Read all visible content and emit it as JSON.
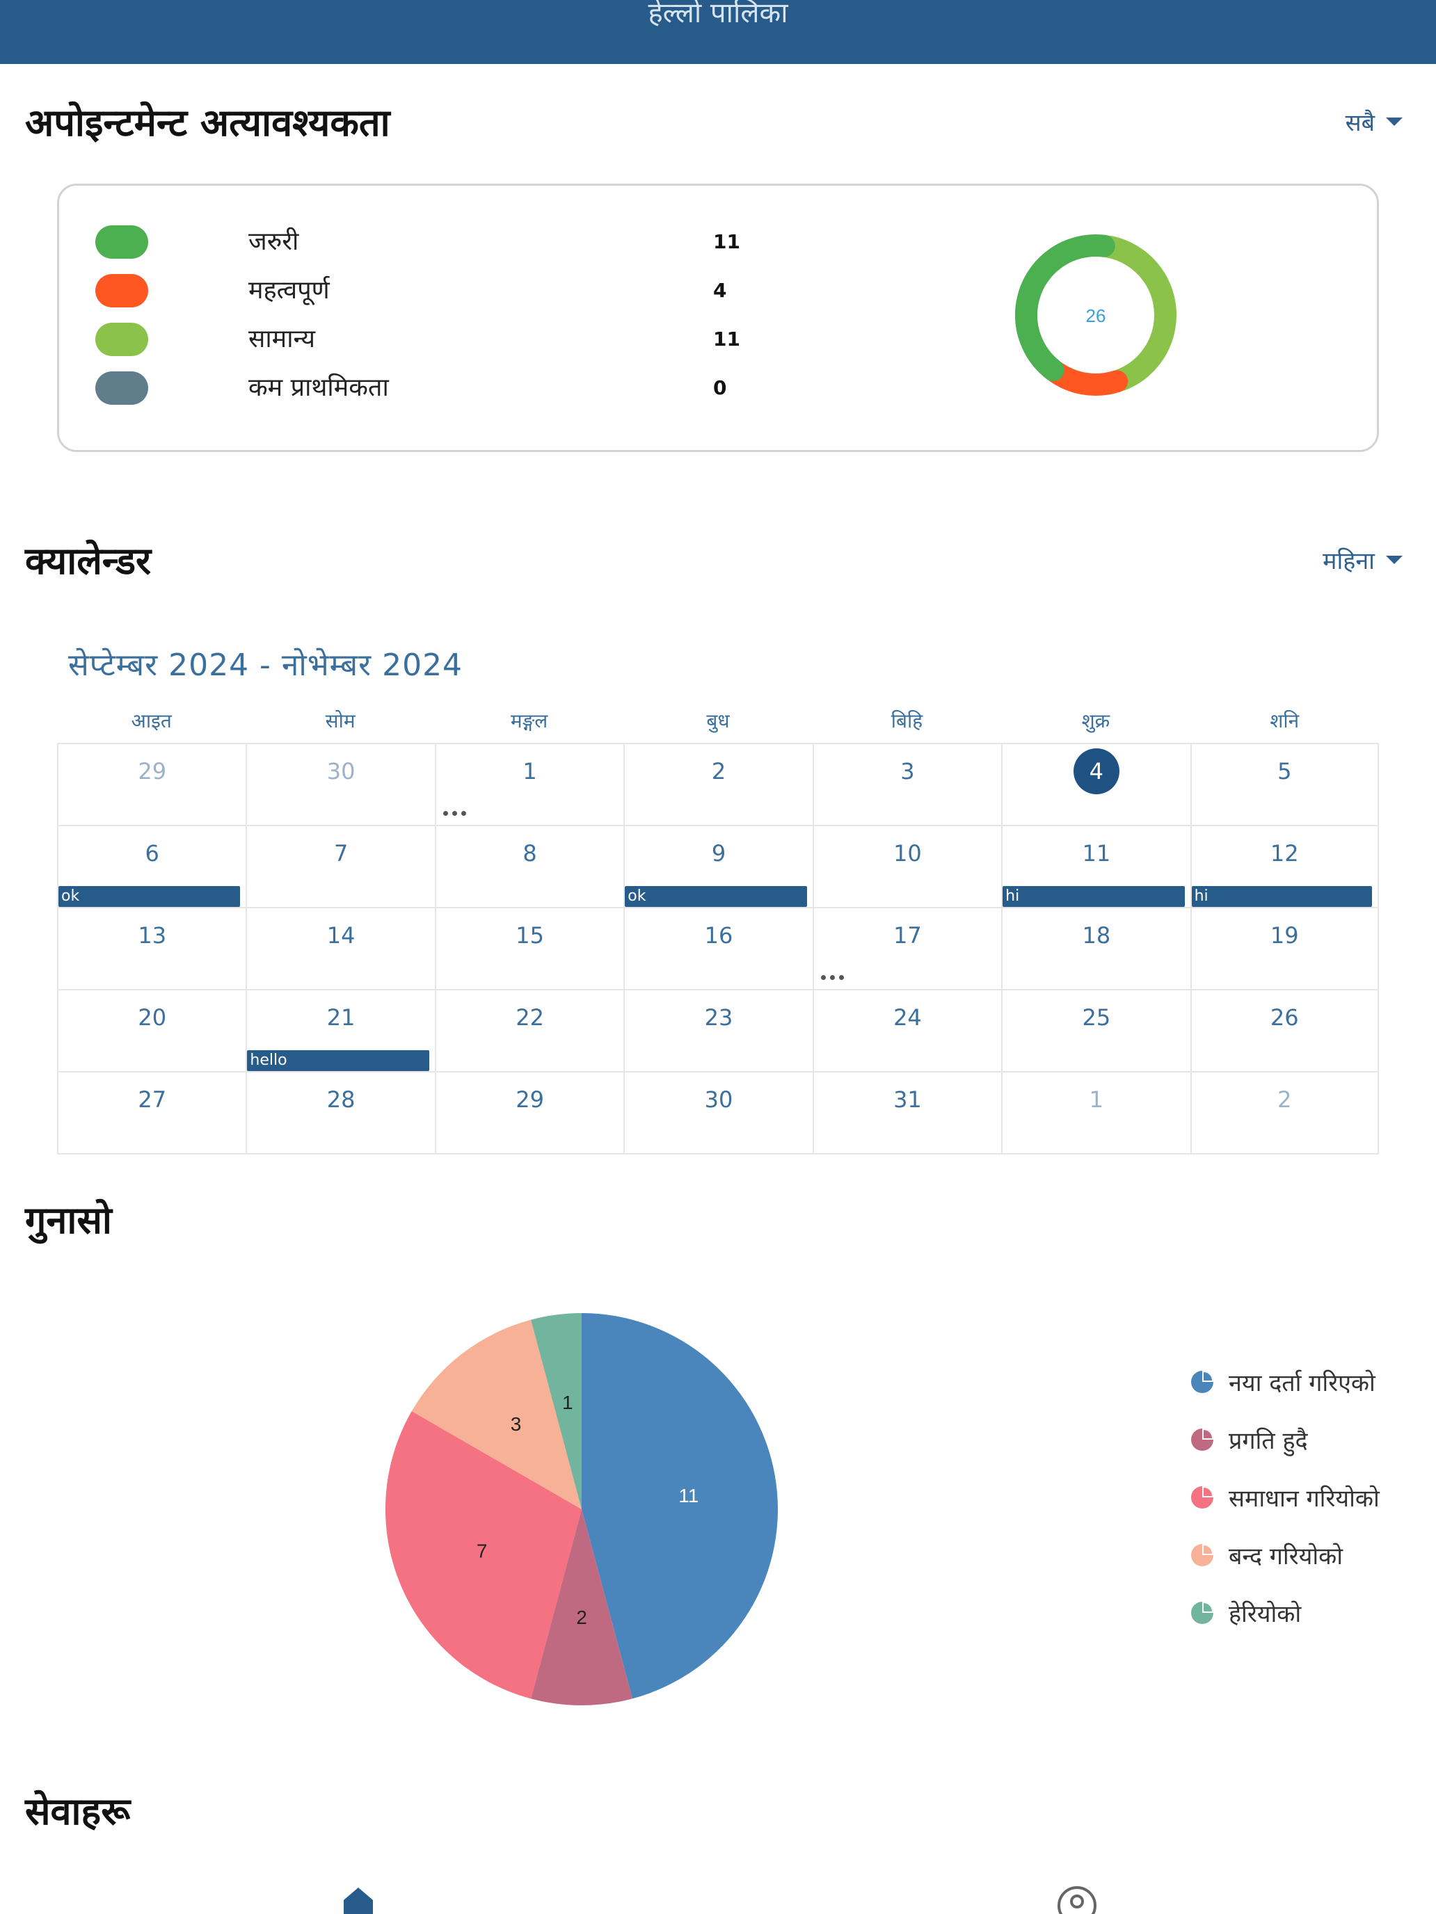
{
  "header": {
    "title": "हेल्लो पालिका"
  },
  "urgency": {
    "title": "अपोइन्टमेन्ट अत्यावश्यकता",
    "filter_label": "सबै",
    "total": "26",
    "items": [
      {
        "label": "जरुरी",
        "count": "11",
        "color": "#4caf50"
      },
      {
        "label": "महत्वपूर्ण",
        "count": "4",
        "color": "#ff5722"
      },
      {
        "label": "सामान्य",
        "count": "11",
        "color": "#8bc34a"
      },
      {
        "label": "कम प्राथमिकता",
        "count": "0",
        "color": "#607d8b"
      }
    ]
  },
  "calendar": {
    "title": "क्यालेन्डर",
    "filter_label": "महिना",
    "range": "सेप्टेम्बर 2024 - नोभेम्बर 2024",
    "weekdays": [
      "आइत",
      "सोम",
      "मङ्गल",
      "बुध",
      "बिहि",
      "शुक्र",
      "शनि"
    ],
    "weeks": [
      [
        {
          "d": "29",
          "muted": true
        },
        {
          "d": "30",
          "muted": true
        },
        {
          "d": "1",
          "more": true
        },
        {
          "d": "2"
        },
        {
          "d": "3"
        },
        {
          "d": "4",
          "today": true
        },
        {
          "d": "5"
        }
      ],
      [
        {
          "d": "6",
          "event": "ok"
        },
        {
          "d": "7"
        },
        {
          "d": "8"
        },
        {
          "d": "9",
          "event": "ok"
        },
        {
          "d": "10"
        },
        {
          "d": "11",
          "event": "hi"
        },
        {
          "d": "12",
          "event": "hi"
        }
      ],
      [
        {
          "d": "13"
        },
        {
          "d": "14"
        },
        {
          "d": "15"
        },
        {
          "d": "16"
        },
        {
          "d": "17",
          "more": true
        },
        {
          "d": "18"
        },
        {
          "d": "19"
        }
      ],
      [
        {
          "d": "20"
        },
        {
          "d": "21",
          "event": "hello"
        },
        {
          "d": "22"
        },
        {
          "d": "23"
        },
        {
          "d": "24"
        },
        {
          "d": "25"
        },
        {
          "d": "26"
        }
      ],
      [
        {
          "d": "27"
        },
        {
          "d": "28"
        },
        {
          "d": "29"
        },
        {
          "d": "30"
        },
        {
          "d": "31"
        },
        {
          "d": "1",
          "muted": true
        },
        {
          "d": "2",
          "muted": true
        }
      ]
    ]
  },
  "complaints": {
    "title": "गुनासो"
  },
  "chart_data": {
    "type": "pie",
    "categories": [
      "नया दर्ता गरिएको",
      "प्रगति हुदै",
      "समाधान गरियोको",
      "बन्द गरियोको",
      "हेरियोको"
    ],
    "values": [
      11,
      2,
      7,
      3,
      1
    ],
    "colors": [
      "#4a86bb",
      "#c06a82",
      "#f47281",
      "#f7b196",
      "#72b59e"
    ],
    "legend": "right"
  },
  "services": {
    "title": "सेवाहरू"
  },
  "colors": {
    "primary": "#275b89",
    "accent": "#2e5f8e"
  },
  "icons": {
    "bottom_left": "home-icon",
    "bottom_right": "user-icon",
    "legend": "pie-slice-icon"
  }
}
